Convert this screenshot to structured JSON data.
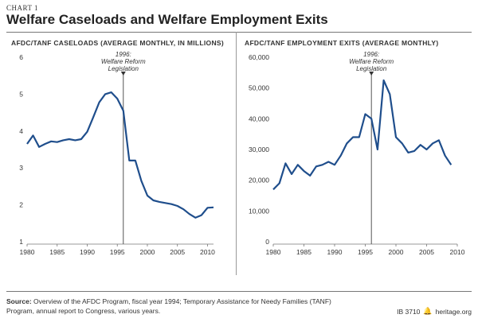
{
  "header": {
    "chart_label": "CHART 1",
    "title": "Welfare Caseloads and Welfare Employment Exits"
  },
  "footer": {
    "source_label": "Source:",
    "source_text": "Overview of the AFDC Program, fiscal year 1994; Temporary Assistance for Needy Families (TANF) Program, annual report to Congress, various years.",
    "report_id": "IB 3710",
    "site": "heritage.org",
    "logo_icon": "liberty-bell-icon"
  },
  "colors": {
    "line": "#1f4e8c",
    "axis": "#777777",
    "text": "#333333",
    "marker": "#555555"
  },
  "chart_data": [
    {
      "type": "line",
      "title": "AFDC/TANF CASELOADS (AVERAGE MONTHLY, IN MILLIONS)",
      "xlabel": "",
      "ylabel": "",
      "xlim": [
        1980,
        2011
      ],
      "ylim": [
        1,
        6
      ],
      "yticks": [
        1,
        2,
        3,
        4,
        5,
        6
      ],
      "ytick_labels": [
        "1",
        "2",
        "3",
        "4",
        "5",
        "6"
      ],
      "xticks": [
        1980,
        1985,
        1990,
        1995,
        2000,
        2005,
        2010
      ],
      "xtick_labels": [
        "1980",
        "1985",
        "1990",
        "1995",
        "2000",
        "2005",
        "2010"
      ],
      "grid": false,
      "annotation": {
        "x": 1996,
        "lines": [
          "1996:",
          "Welfare Reform",
          "Legislation"
        ]
      },
      "series": [
        {
          "x": [
            1980,
            1981,
            1982,
            1983,
            1984,
            1985,
            1986,
            1987,
            1988,
            1989,
            1990,
            1991,
            1992,
            1993,
            1994,
            1995,
            1996,
            1997,
            1998,
            1999,
            2000,
            2001,
            2002,
            2003,
            2004,
            2005,
            2006,
            2007,
            2008,
            2009,
            2010,
            2011
          ],
          "y": [
            3.65,
            3.88,
            3.57,
            3.65,
            3.72,
            3.7,
            3.75,
            3.78,
            3.75,
            3.78,
            3.98,
            4.37,
            4.78,
            5.0,
            5.05,
            4.88,
            4.55,
            3.2,
            3.2,
            2.65,
            2.25,
            2.12,
            2.08,
            2.05,
            2.02,
            1.97,
            1.88,
            1.75,
            1.65,
            1.72,
            1.92,
            1.93
          ]
        }
      ]
    },
    {
      "type": "line",
      "title": "AFDC/TANF EMPLOYMENT EXITS (AVERAGE MONTHLY)",
      "xlabel": "",
      "ylabel": "",
      "xlim": [
        1980,
        2010
      ],
      "ylim": [
        0,
        60000
      ],
      "yticks": [
        0,
        10000,
        20000,
        30000,
        40000,
        50000,
        60000
      ],
      "ytick_labels": [
        "0",
        "10,000",
        "20,000",
        "30,000",
        "40,000",
        "50,000",
        "60,000"
      ],
      "xticks": [
        1980,
        1985,
        1990,
        1995,
        2000,
        2005,
        2010
      ],
      "xtick_labels": [
        "1980",
        "1985",
        "1990",
        "1995",
        "2000",
        "2005",
        "2010"
      ],
      "grid": false,
      "annotation": {
        "x": 1996,
        "lines": [
          "1996:",
          "Welfare Reform",
          "Legislation"
        ]
      },
      "series": [
        {
          "x": [
            1980,
            1981,
            1982,
            1983,
            1984,
            1985,
            1986,
            1987,
            1988,
            1989,
            1990,
            1991,
            1992,
            1993,
            1994,
            1995,
            1996,
            1997,
            1998,
            1999,
            2000,
            2001,
            2002,
            2003,
            2004,
            2005,
            2006,
            2007,
            2008,
            2009
          ],
          "y": [
            17000,
            19000,
            25500,
            22000,
            25000,
            23000,
            21500,
            24500,
            25000,
            26000,
            25000,
            28000,
            32000,
            34000,
            34000,
            41500,
            40000,
            30000,
            52500,
            48000,
            34000,
            32000,
            29000,
            29500,
            31500,
            30000,
            32000,
            33000,
            28000,
            25000
          ]
        }
      ]
    }
  ]
}
